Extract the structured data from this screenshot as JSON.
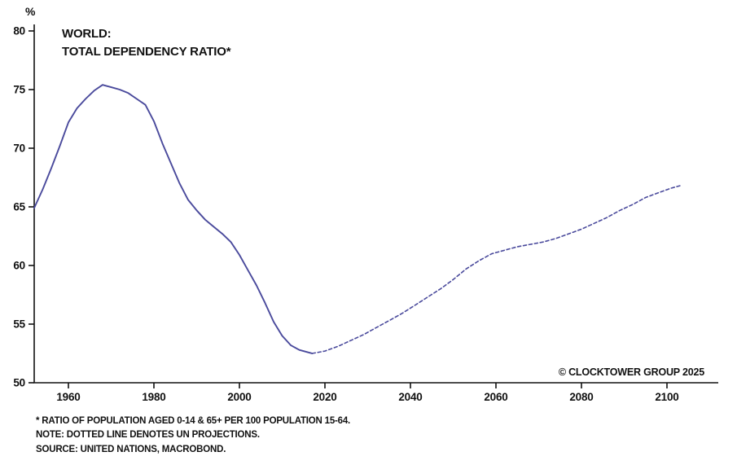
{
  "title": {
    "line1": "WORLD:",
    "line2": "TOTAL DEPENDENCY RATIO*"
  },
  "y_unit_label": "%",
  "copyright": "© CLOCKTOWER GROUP 2025",
  "footnotes": [
    "* RATIO OF POPULATION AGED 0-14 & 65+ PER 100 POPULATION 15-64.",
    "NOTE: DOTTED LINE DENOTES UN PROJECTIONS.",
    "SOURCE: UNITED NATIONS, MACROBOND."
  ],
  "colors": {
    "line": "#4a4a9c",
    "axis": "#111111",
    "text": "#111111"
  },
  "chart_data": {
    "type": "line",
    "title": "WORLD: TOTAL DEPENDENCY RATIO*",
    "xlabel": "",
    "ylabel": "%",
    "x_range": [
      1952,
      2112
    ],
    "y_range": [
      50,
      80
    ],
    "x_ticks": [
      1960,
      1980,
      2000,
      2020,
      2040,
      2060,
      2080,
      2100
    ],
    "y_ticks": [
      50,
      55,
      60,
      65,
      70,
      75,
      80
    ],
    "grid": false,
    "legend_position": "none",
    "series": [
      {
        "name": "historical",
        "style": "solid",
        "points": [
          [
            1952,
            64.9
          ],
          [
            1954,
            66.5
          ],
          [
            1956,
            68.3
          ],
          [
            1958,
            70.2
          ],
          [
            1960,
            72.2
          ],
          [
            1962,
            73.4
          ],
          [
            1964,
            74.2
          ],
          [
            1966,
            74.9
          ],
          [
            1968,
            75.4
          ],
          [
            1970,
            75.2
          ],
          [
            1972,
            75.0
          ],
          [
            1974,
            74.7
          ],
          [
            1976,
            74.2
          ],
          [
            1978,
            73.7
          ],
          [
            1980,
            72.3
          ],
          [
            1982,
            70.4
          ],
          [
            1984,
            68.7
          ],
          [
            1986,
            67.0
          ],
          [
            1988,
            65.6
          ],
          [
            1990,
            64.7
          ],
          [
            1992,
            63.9
          ],
          [
            1994,
            63.3
          ],
          [
            1996,
            62.7
          ],
          [
            1998,
            62.0
          ],
          [
            2000,
            60.9
          ],
          [
            2002,
            59.6
          ],
          [
            2004,
            58.3
          ],
          [
            2006,
            56.8
          ],
          [
            2008,
            55.2
          ],
          [
            2010,
            54.0
          ],
          [
            2012,
            53.2
          ],
          [
            2014,
            52.8
          ],
          [
            2016,
            52.6
          ],
          [
            2017,
            52.5
          ]
        ]
      },
      {
        "name": "un-projection",
        "style": "dashed",
        "points": [
          [
            2017,
            52.5
          ],
          [
            2020,
            52.7
          ],
          [
            2023,
            53.1
          ],
          [
            2026,
            53.6
          ],
          [
            2029,
            54.1
          ],
          [
            2032,
            54.7
          ],
          [
            2035,
            55.3
          ],
          [
            2038,
            55.9
          ],
          [
            2041,
            56.6
          ],
          [
            2044,
            57.3
          ],
          [
            2047,
            58.0
          ],
          [
            2050,
            58.8
          ],
          [
            2053,
            59.7
          ],
          [
            2056,
            60.4
          ],
          [
            2059,
            61.0
          ],
          [
            2062,
            61.3
          ],
          [
            2065,
            61.6
          ],
          [
            2068,
            61.8
          ],
          [
            2071,
            62.0
          ],
          [
            2074,
            62.3
          ],
          [
            2077,
            62.7
          ],
          [
            2080,
            63.1
          ],
          [
            2083,
            63.6
          ],
          [
            2086,
            64.1
          ],
          [
            2089,
            64.7
          ],
          [
            2092,
            65.2
          ],
          [
            2095,
            65.8
          ],
          [
            2098,
            66.2
          ],
          [
            2101,
            66.6
          ],
          [
            2103,
            66.8
          ]
        ]
      }
    ]
  }
}
